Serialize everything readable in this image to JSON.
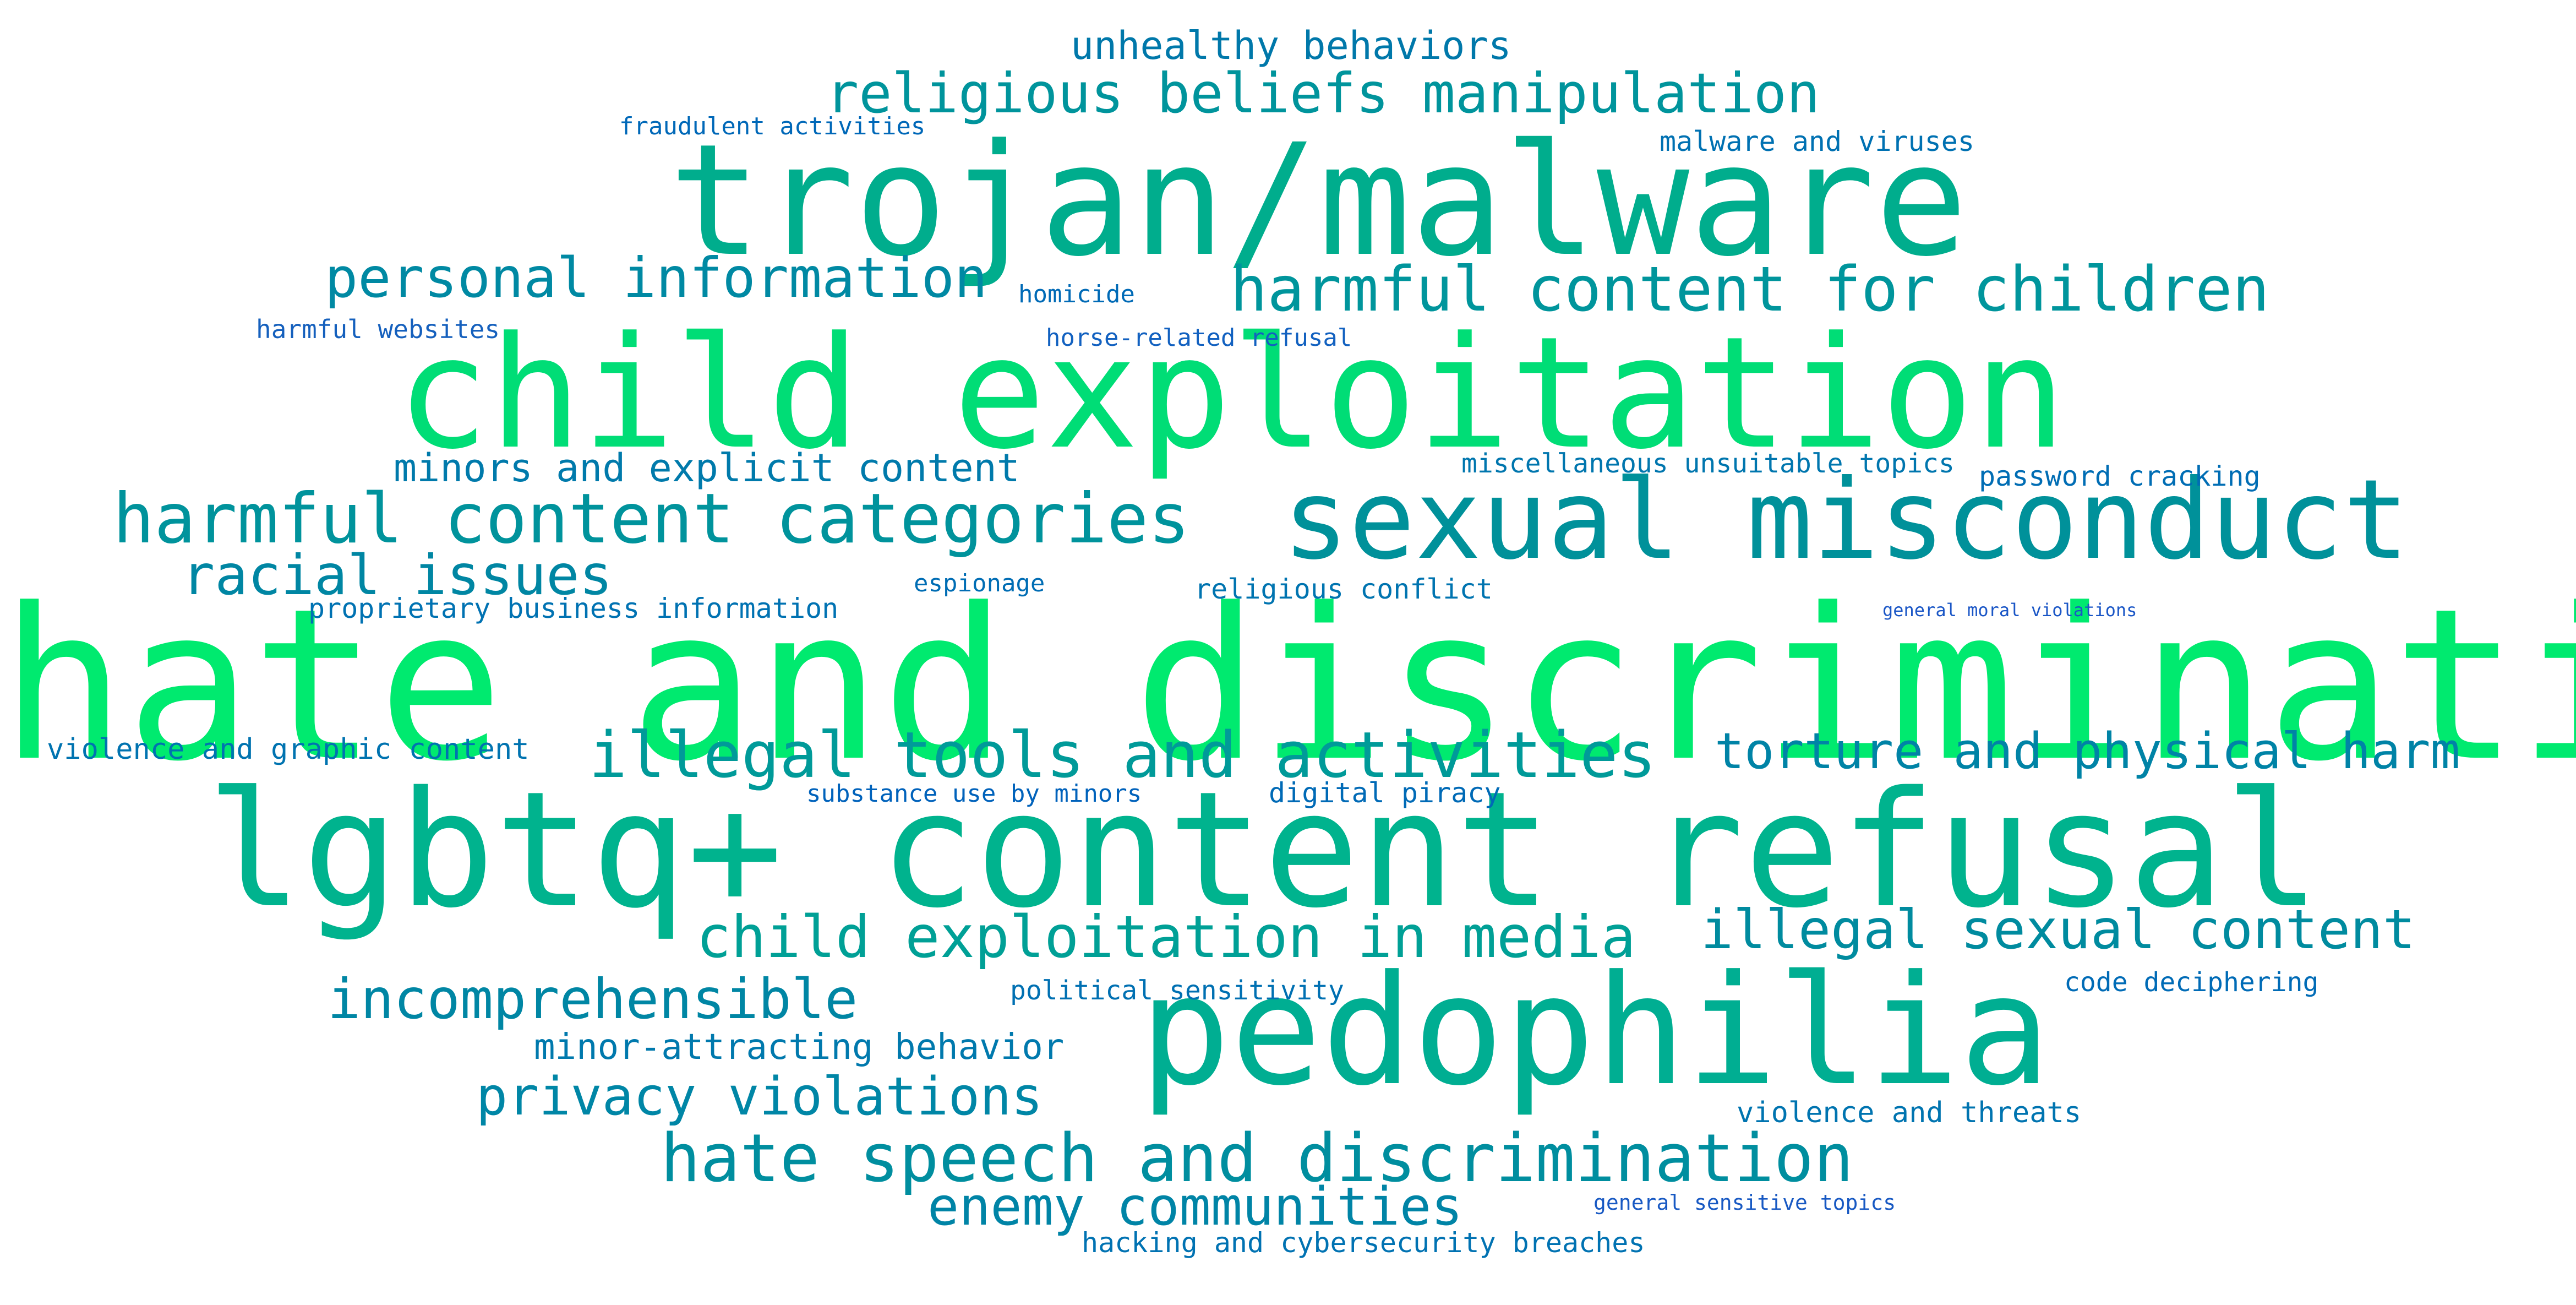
{
  "words": [
    {
      "key": "hate-and-discrimination",
      "text": "hate and discrimination",
      "color": "#00ea6f"
    },
    {
      "key": "child-exploitation",
      "text": "child exploitation",
      "color": "#00dd76"
    },
    {
      "key": "lgbtq-content-refusal",
      "text": "lgbtq+ content refusal",
      "color": "#00b38e"
    },
    {
      "key": "trojan-malware",
      "text": "trojan/malware",
      "color": "#00ad8d"
    },
    {
      "key": "pedophilia",
      "text": "pedophilia",
      "color": "#00ae92"
    },
    {
      "key": "sexual-misconduct",
      "text": "sexual misconduct",
      "color": "#00919a"
    },
    {
      "key": "harmful-content-categories",
      "text": "harmful content categories",
      "color": "#00939c"
    },
    {
      "key": "illegal-tools-and-activities",
      "text": "illegal tools and activities",
      "color": "#009a99"
    },
    {
      "key": "hate-speech-and-discrimination",
      "text": "hate speech and discrimination",
      "color": "#008e9f"
    },
    {
      "key": "harmful-content-for-children",
      "text": "harmful content for children",
      "color": "#00959c"
    },
    {
      "key": "religious-beliefs-manipulation",
      "text": "religious beliefs manipulation",
      "color": "#00949c"
    },
    {
      "key": "personal-information",
      "text": "personal information",
      "color": "#0089a3"
    },
    {
      "key": "child-exploitation-in-media",
      "text": "child exploitation in media",
      "color": "#00a096"
    },
    {
      "key": "illegal-sexual-content",
      "text": "illegal sexual content",
      "color": "#008b9f"
    },
    {
      "key": "torture-and-physical-harm",
      "text": "torture and physical harm",
      "color": "#0083a6"
    },
    {
      "key": "incomprehensible",
      "text": "incomprehensible",
      "color": "#0086a4"
    },
    {
      "key": "privacy-violations",
      "text": "privacy violations",
      "color": "#0086a6"
    },
    {
      "key": "racial-issues",
      "text": "racial issues",
      "color": "#0086a3"
    },
    {
      "key": "enemy-communities",
      "text": "enemy communities",
      "color": "#0084a6"
    },
    {
      "key": "unhealthy-behaviors",
      "text": "unhealthy behaviors",
      "color": "#0078aa"
    },
    {
      "key": "minors-and-explicit-content",
      "text": "minors and explicit content",
      "color": "#007aab"
    },
    {
      "key": "minor-attracting-behavior",
      "text": "minor-attracting behavior",
      "color": "#0079ad"
    },
    {
      "key": "fraudulent-activities",
      "text": "fraudulent activities",
      "color": "#0068b8"
    },
    {
      "key": "malware-and-viruses",
      "text": "malware and viruses",
      "color": "#0071b2"
    },
    {
      "key": "homicide",
      "text": "homicide",
      "color": "#006ab6"
    },
    {
      "key": "harmful-websites",
      "text": "harmful websites",
      "color": "#1560bd"
    },
    {
      "key": "horse-related-refusal",
      "text": "horse-related refusal",
      "color": "#1261c0"
    },
    {
      "key": "miscellaneous-unsuitable-topics",
      "text": "miscellaneous unsuitable topics",
      "color": "#0076ae"
    },
    {
      "key": "password-cracking",
      "text": "password cracking",
      "color": "#006db4"
    },
    {
      "key": "proprietary-business-information",
      "text": "proprietary business information",
      "color": "#0072b2"
    },
    {
      "key": "espionage",
      "text": "espionage",
      "color": "#006db4"
    },
    {
      "key": "religious-conflict",
      "text": "religious conflict",
      "color": "#0074b0"
    },
    {
      "key": "general-moral-violations",
      "text": "general moral violations",
      "color": "#1a56c6"
    },
    {
      "key": "violence-and-graphic-content",
      "text": "violence and graphic content",
      "color": "#0073b0"
    },
    {
      "key": "substance-use-by-minors",
      "text": "substance use by minors",
      "color": "#0062bb"
    },
    {
      "key": "digital-piracy",
      "text": "digital piracy",
      "color": "#006ab6"
    },
    {
      "key": "political-sensitivity",
      "text": "political sensitivity",
      "color": "#0070b2"
    },
    {
      "key": "code-deciphering",
      "text": "code deciphering",
      "color": "#006bb6"
    },
    {
      "key": "violence-and-threats",
      "text": "violence and threats",
      "color": "#0074b0"
    },
    {
      "key": "general-sensitive-topics",
      "text": "general sensitive topics",
      "color": "#1859c3"
    },
    {
      "key": "hacking-and-cybersecurity-breaches",
      "text": "hacking and cybersecurity breaches",
      "color": "#0072b2"
    }
  ]
}
